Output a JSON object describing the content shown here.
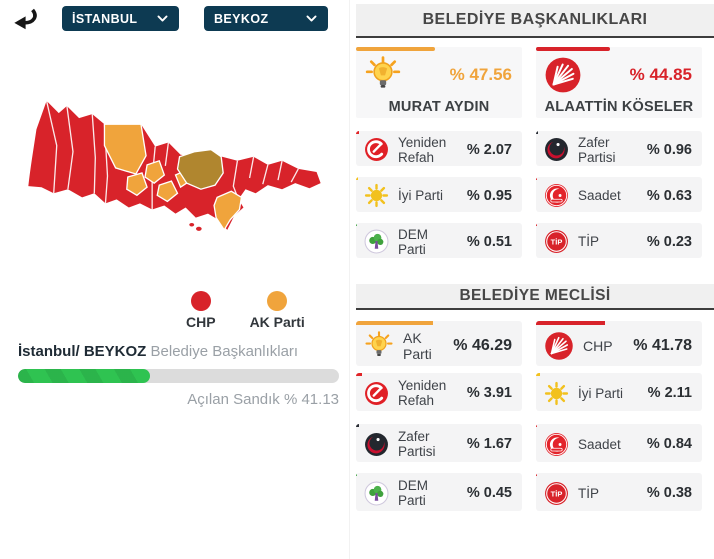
{
  "colors": {
    "akparti": "#F0A43C",
    "chp": "#D8232A",
    "yeniden_refah": "#E02528",
    "zafer": "#2A2E35",
    "iyi": "#F2C11E",
    "saadet": "#DE2329",
    "dem": "#45A648",
    "tip": "#D8232A",
    "navy": "#0D3A52",
    "beykoz_highlight": "#B0862F",
    "progress_green": "#2FC351"
  },
  "toolbar": {
    "province": "İSTANBUL",
    "district": "BEYKOZ"
  },
  "map": {
    "legend": [
      {
        "label": "CHP",
        "color": "#D8232A"
      },
      {
        "label": "AK Parti",
        "color": "#F0A43C"
      }
    ],
    "caption_bold": "İstanbul/ BEYKOZ",
    "caption_rest": "Belediye Başkanlıkları",
    "opened_ballots_label": "Açılan Sandık % 41.13",
    "opened_ballots_percent": 41.13
  },
  "baskanlik": {
    "title": "BELEDİYE BAŞKANLIKLARI",
    "candidates": [
      {
        "party": "akparti",
        "name": "MURAT AYDIN",
        "percent_label": "% 47.56",
        "percent": 47.56
      },
      {
        "party": "chp",
        "name": "ALAATTİN KÖSELER",
        "percent_label": "% 44.85",
        "percent": 44.85
      }
    ],
    "rows": [
      [
        {
          "party": "yeniden_refah",
          "name": "Yeniden Refah",
          "percent_label": "% 2.07",
          "percent": 2.07
        },
        {
          "party": "zafer",
          "name": "Zafer Partisi",
          "percent_label": "% 0.96",
          "percent": 0.96
        }
      ],
      [
        {
          "party": "iyi",
          "name": "İyi Parti",
          "percent_label": "% 0.95",
          "percent": 0.95
        },
        {
          "party": "saadet",
          "name": "Saadet",
          "percent_label": "% 0.63",
          "percent": 0.63
        }
      ],
      [
        {
          "party": "dem",
          "name": "DEM Parti",
          "percent_label": "% 0.51",
          "percent": 0.51
        },
        {
          "party": "tip",
          "name": "TİP",
          "percent_label": "% 0.23",
          "percent": 0.23
        }
      ]
    ]
  },
  "meclis": {
    "title": "BELEDİYE MECLİSİ",
    "leaders": [
      {
        "party": "akparti",
        "name": "AK Parti",
        "percent_label": "% 46.29",
        "percent": 46.29
      },
      {
        "party": "chp",
        "name": "CHP",
        "percent_label": "% 41.78",
        "percent": 41.78
      }
    ],
    "rows": [
      [
        {
          "party": "yeniden_refah",
          "name": "Yeniden Refah",
          "percent_label": "% 3.91",
          "percent": 3.91
        },
        {
          "party": "iyi",
          "name": "İyi Parti",
          "percent_label": "% 2.11",
          "percent": 2.11
        }
      ],
      [
        {
          "party": "zafer",
          "name": "Zafer Partisi",
          "percent_label": "% 1.67",
          "percent": 1.67
        },
        {
          "party": "saadet",
          "name": "Saadet",
          "percent_label": "% 0.84",
          "percent": 0.84
        }
      ],
      [
        {
          "party": "dem",
          "name": "DEM Parti",
          "percent_label": "% 0.45",
          "percent": 0.45
        },
        {
          "party": "tip",
          "name": "TİP",
          "percent_label": "% 0.38",
          "percent": 0.38
        }
      ]
    ]
  }
}
